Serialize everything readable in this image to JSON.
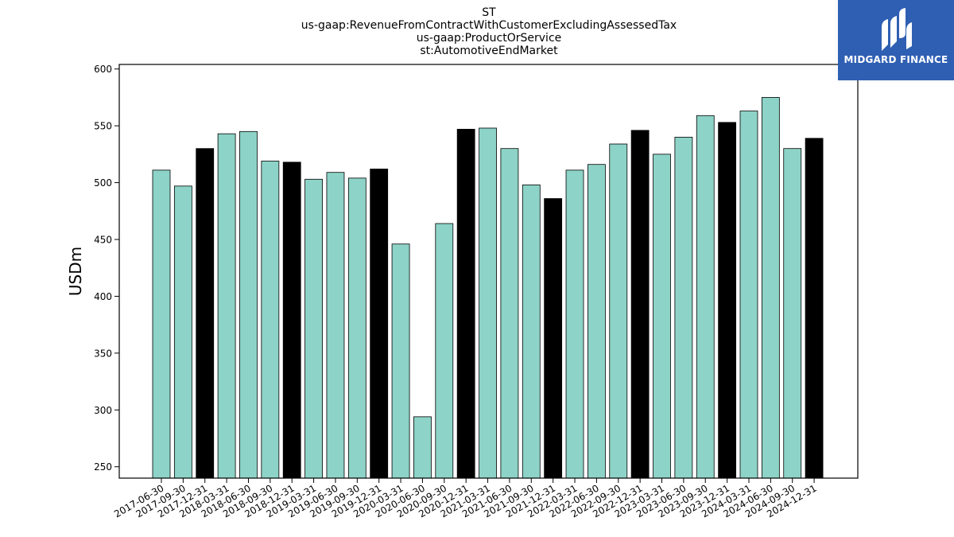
{
  "chart_data": {
    "type": "bar",
    "title_lines": [
      "ST",
      "us-gaap:RevenueFromContractWithCustomerExcludingAssessedTax",
      "us-gaap:ProductOrService",
      "st:AutomotiveEndMarket"
    ],
    "xlabel": "",
    "ylabel": "USDm",
    "ylim": [
      240,
      604
    ],
    "yticks": [
      250,
      300,
      350,
      400,
      450,
      500,
      550,
      600
    ],
    "grid": false,
    "legend": "none",
    "categories": [
      "2017-06-30",
      "2017-09-30",
      "2017-12-31",
      "2018-03-31",
      "2018-06-30",
      "2018-09-30",
      "2018-12-31",
      "2019-03-31",
      "2019-06-30",
      "2019-09-30",
      "2019-12-31",
      "2020-03-31",
      "2020-06-30",
      "2020-09-30",
      "2020-12-31",
      "2021-03-31",
      "2021-06-30",
      "2021-09-30",
      "2021-12-31",
      "2022-03-31",
      "2022-06-30",
      "2022-09-30",
      "2022-12-31",
      "2023-03-31",
      "2023-06-30",
      "2023-09-30",
      "2023-12-31",
      "2024-03-31",
      "2024-06-30",
      "2024-09-30",
      "2024-12-31"
    ],
    "values": [
      511,
      497,
      530,
      543,
      545,
      519,
      518,
      503,
      509,
      504,
      512,
      446,
      294,
      464,
      547,
      548,
      530,
      498,
      486,
      511,
      516,
      534,
      546,
      525,
      540,
      559,
      553,
      563,
      575,
      530,
      539
    ],
    "highlight_suffix": "-12-31",
    "colors": {
      "bar": "#8dd3c7",
      "highlight": "#000000",
      "edge": "#000000"
    }
  },
  "logo": {
    "text": "MIDGARD FINANCE",
    "icon": "midgard-logo-icon"
  }
}
